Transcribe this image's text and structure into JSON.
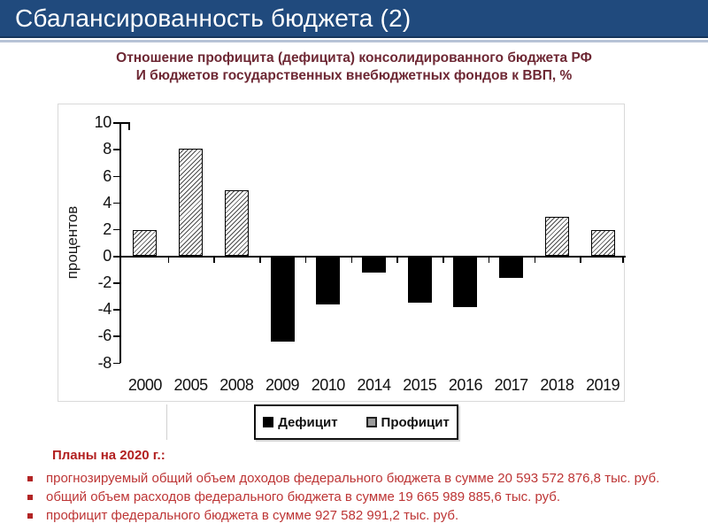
{
  "header": {
    "title": "Сбалансированность бюджета (2)"
  },
  "subtitle": {
    "line1": "Отношение профицита (дефицита)  консолидированного бюджета РФ",
    "line2": "И бюджетов государственных внебюджетных фондов к ВВП, %"
  },
  "chart_data": {
    "type": "bar",
    "title": "Отношение профицита (дефицита) консолидированного бюджета РФ и бюджетов государственных внебюджетных фондов к ВВП, %",
    "categories": [
      "2000",
      "2005",
      "2008",
      "2009",
      "2010",
      "2014",
      "2015",
      "2016",
      "2017",
      "2018",
      "2019"
    ],
    "values": [
      1.9,
      8.0,
      4.9,
      -6.3,
      -3.5,
      -1.1,
      -3.4,
      -3.7,
      -1.5,
      2.9,
      1.9
    ],
    "xlabel": "",
    "ylabel": "процентов",
    "ylim": [
      -8,
      10
    ],
    "ytick_step": 2,
    "grid": false,
    "legend_position": "bottom",
    "legend": [
      {
        "label": "Дефицит",
        "style": "solid-black",
        "applies_to": "negative values"
      },
      {
        "label": "Профицит",
        "style": "hatched",
        "applies_to": "positive values"
      }
    ]
  },
  "plans": {
    "heading": "Планы на 2020 г.:",
    "items": [
      "прогнозируемый общий объем доходов федерального бюджета в сумме 20 593 572 876,8 тыс. руб.",
      "общий объем расходов федерального бюджета в сумме 19 665 989 885,6 тыс. руб.",
      "профицит федерального бюджета в сумме 927 582 991,2 тыс. руб."
    ]
  },
  "colors": {
    "header_bg": "#204a7d",
    "header_edge": "#16365c",
    "subtitle_text": "#6e2834",
    "heading_red": "#b22020",
    "bullet_red": "#bd3535",
    "bar_deficit": "#000000",
    "bar_surplus": "hatched-white"
  }
}
